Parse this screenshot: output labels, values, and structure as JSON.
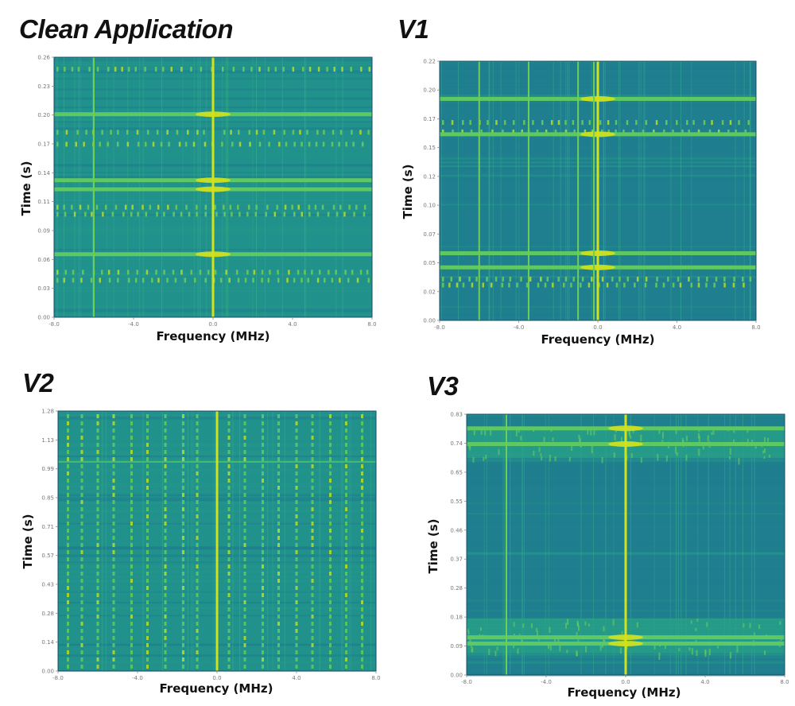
{
  "chart_data": [
    {
      "id": "clean",
      "type": "heatmap",
      "title": "Clean Application",
      "xlabel": "Frequency (MHz)",
      "ylabel": "Time (s)",
      "xlim": [
        -8.0,
        8.0
      ],
      "ylim": [
        0.0,
        0.26
      ],
      "xticks": [
        "-8.0",
        "-4.0",
        "0.0",
        "4.0",
        "8.0"
      ],
      "yticks": [
        "0.00",
        "0.03",
        "0.06",
        "0.09",
        "0.11",
        "0.14",
        "0.17",
        "0.20",
        "0.23",
        "0.26"
      ],
      "colormap": "viridis",
      "features": {
        "vertical_lines_mhz": [
          -6.0,
          0.0
        ],
        "bright_bands_s": [
          0.063,
          0.128,
          0.137,
          0.203
        ],
        "dashed_bands_s": [
          0.037,
          0.045,
          0.103,
          0.11,
          0.173,
          0.185,
          0.248
        ]
      }
    },
    {
      "id": "v1",
      "type": "heatmap",
      "title": "V1",
      "xlabel": "Frequency (MHz)",
      "ylabel": "Time (s)",
      "xlim": [
        -8.0,
        8.0
      ],
      "ylim": [
        0.0,
        0.22
      ],
      "xticks": [
        "-8.0",
        "-4.0",
        "0.0",
        "4.0",
        "8.0"
      ],
      "yticks": [
        "0.00",
        "0.02",
        "0.05",
        "0.07",
        "0.10",
        "0.12",
        "0.15",
        "0.17",
        "0.20",
        "0.22"
      ],
      "colormap": "viridis",
      "features": {
        "vertical_lines_mhz": [
          -6.0,
          -3.5,
          -1.0,
          -0.2,
          0.0
        ],
        "bright_bands_s": [
          0.045,
          0.057,
          0.158,
          0.188
        ],
        "dashed_bands_s": [
          0.03,
          0.035,
          0.16,
          0.168
        ]
      }
    },
    {
      "id": "v2",
      "type": "heatmap",
      "title": "V2",
      "xlabel": "Frequency (MHz)",
      "ylabel": "Time (s)",
      "xlim": [
        -8.0,
        8.0
      ],
      "ylim": [
        0.0,
        1.28
      ],
      "xticks": [
        "-8.0",
        "-4.0",
        "0.0",
        "4.0",
        "8.0"
      ],
      "yticks": [
        "0.00",
        "0.14",
        "0.28",
        "0.43",
        "0.57",
        "0.71",
        "0.85",
        "0.99",
        "1.13",
        "1.28"
      ],
      "colormap": "viridis",
      "features": {
        "vertical_lines_mhz": [
          0.0
        ],
        "horizontal_line_s": 1.03,
        "dotted_columns_mhz": [
          -7.5,
          -6.8,
          -6.0,
          -5.2,
          -4.3,
          -3.5,
          -2.6,
          -1.7,
          -1.0,
          0.6,
          1.4,
          2.3,
          3.1,
          4.0,
          4.8,
          5.7,
          6.5,
          7.3
        ]
      }
    },
    {
      "id": "v3",
      "type": "heatmap",
      "title": "V3",
      "xlabel": "Frequency (MHz)",
      "ylabel": "Time (s)",
      "xlim": [
        -8.0,
        8.0
      ],
      "ylim": [
        0.0,
        0.83
      ],
      "xticks": [
        "-8.0",
        "-4.0",
        "0.0",
        "4.0",
        "8.0"
      ],
      "yticks": [
        "0.00",
        "0.09",
        "0.18",
        "0.28",
        "0.37",
        "0.46",
        "0.55",
        "0.65",
        "0.74",
        "0.83"
      ],
      "colormap": "viridis",
      "features": {
        "vertical_lines_mhz": [
          -6.0,
          0.0
        ],
        "bright_bands_s": [
          0.1,
          0.12,
          0.735,
          0.785
        ],
        "active_regions_s": [
          [
            0.07,
            0.18
          ],
          [
            0.69,
            0.79
          ]
        ]
      }
    }
  ]
}
